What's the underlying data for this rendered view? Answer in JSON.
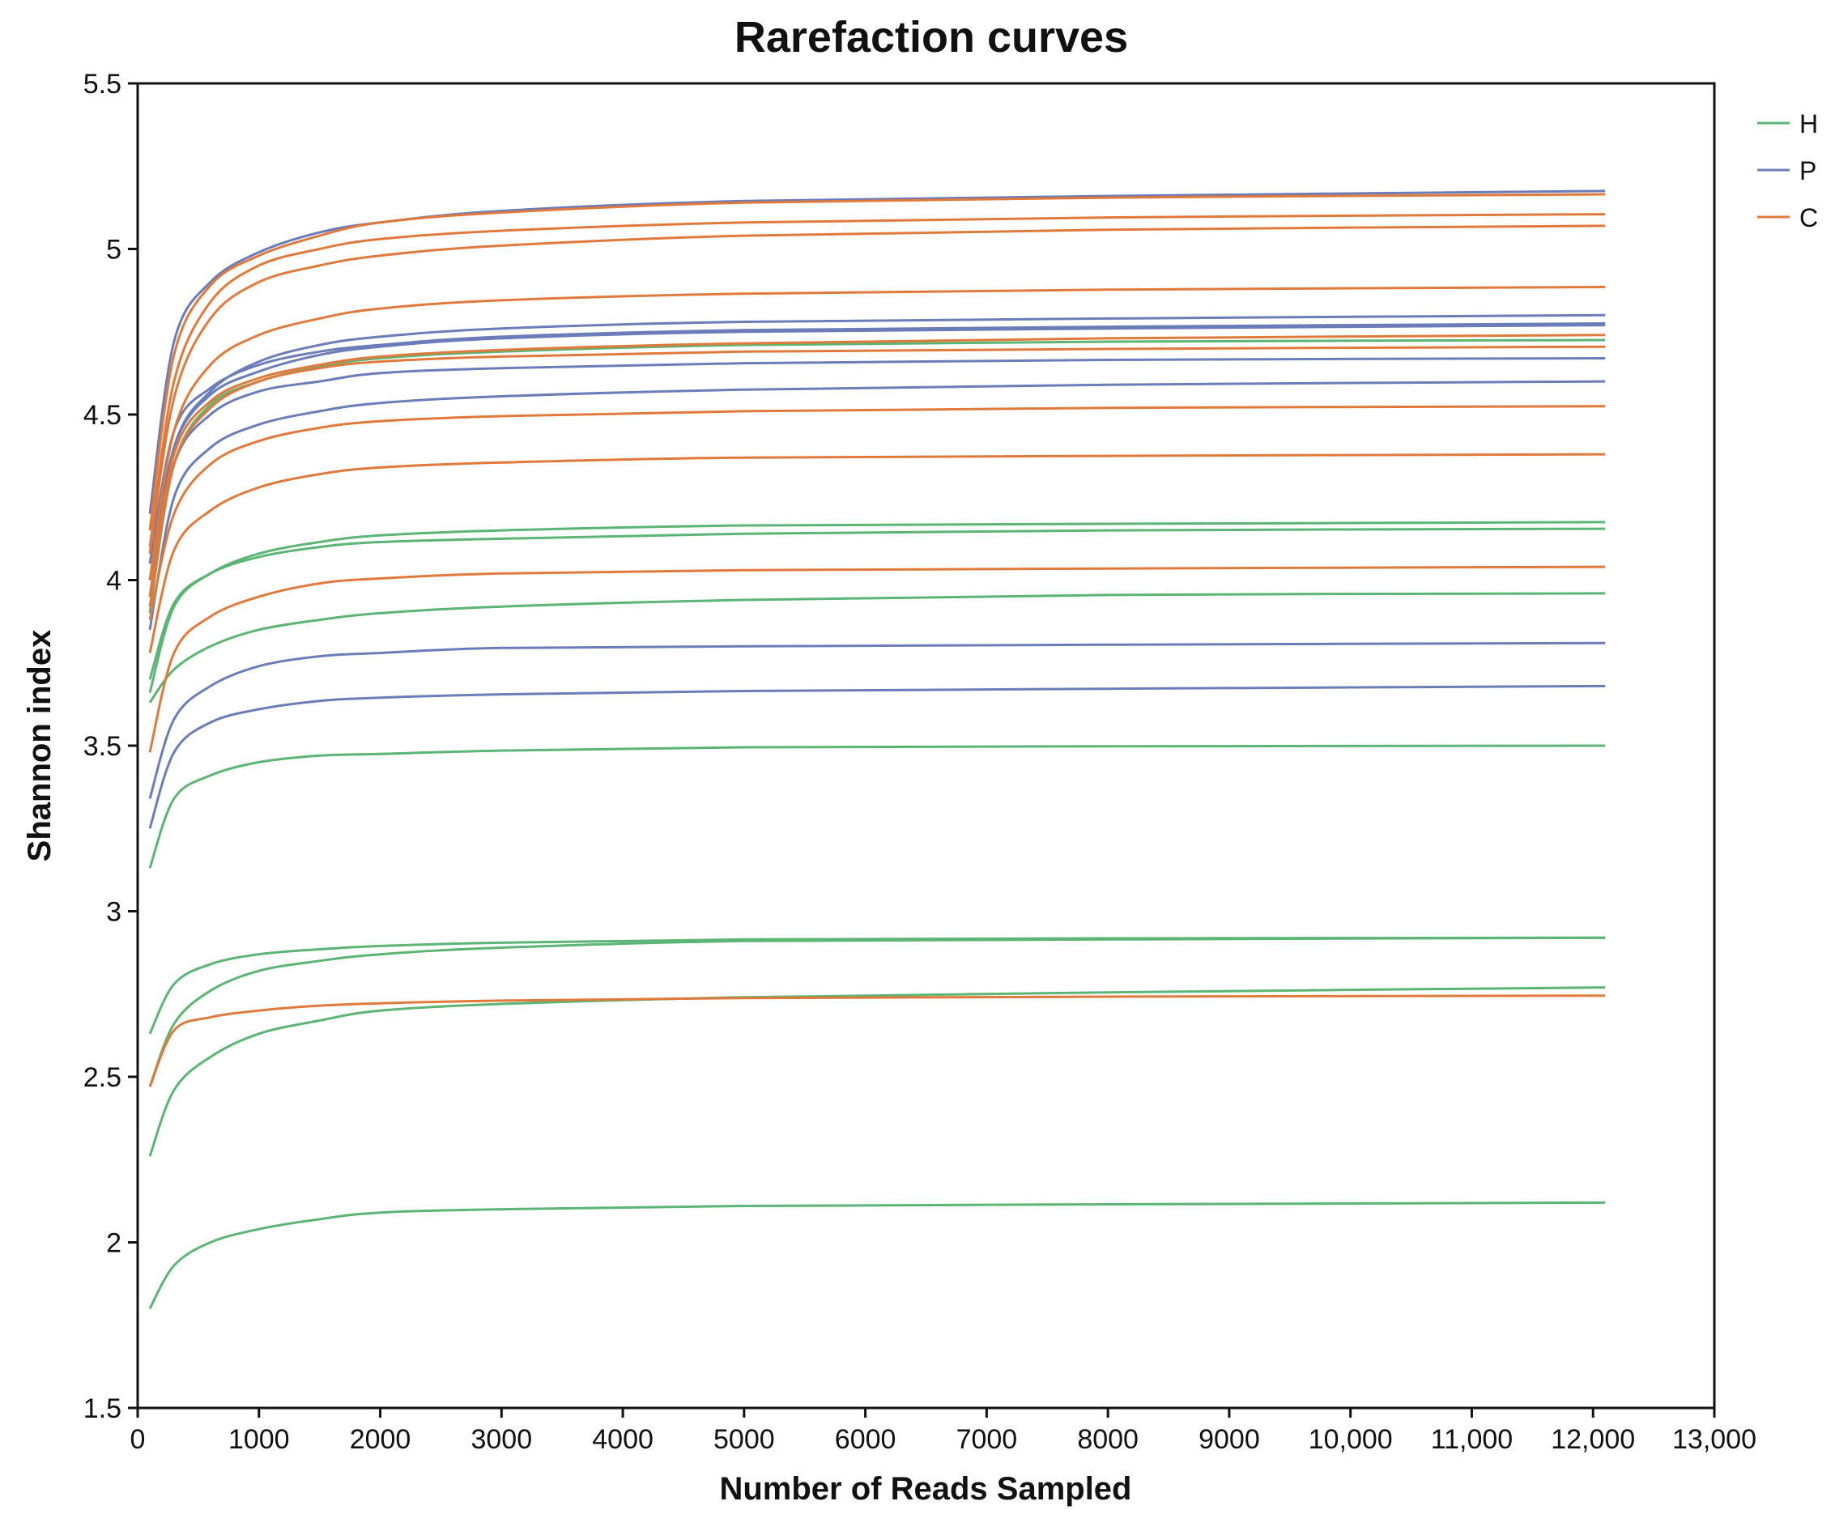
{
  "chart_data": {
    "type": "line",
    "title": "Rarefaction curves",
    "xlabel": "Number of Reads Sampled",
    "ylabel": "Shannon index",
    "xlim": [
      0,
      13000
    ],
    "ylim": [
      1.5,
      5.5
    ],
    "x_ticks": [
      0,
      1000,
      2000,
      3000,
      4000,
      5000,
      6000,
      7000,
      8000,
      9000,
      10000,
      11000,
      12000,
      13000
    ],
    "x_tick_labels": [
      "0",
      "1000",
      "2000",
      "3000",
      "4000",
      "5000",
      "6000",
      "7000",
      "8000",
      "9000",
      "10,000",
      "11,000",
      "12,000",
      "13,000"
    ],
    "y_ticks": [
      1.5,
      2,
      2.5,
      3,
      3.5,
      4,
      4.5,
      5,
      5.5
    ],
    "y_tick_labels": [
      "1.5",
      "2",
      "2.5",
      "3",
      "3.5",
      "4",
      "4.5",
      "5",
      "5.5"
    ],
    "grid": false,
    "legend_position": "top-right",
    "x": [
      100,
      300,
      600,
      1000,
      1500,
      2000,
      3000,
      5000,
      8000,
      12100
    ],
    "groups": [
      {
        "name": "H",
        "color": "#5cb574"
      },
      {
        "name": "P",
        "color": "#6b7db8"
      },
      {
        "name": "C",
        "color": "#e07a3c"
      }
    ],
    "series": [
      {
        "name": "H",
        "values": [
          1.8,
          1.93,
          2.0,
          2.04,
          2.07,
          2.09,
          2.1,
          2.11,
          2.115,
          2.12
        ]
      },
      {
        "name": "H",
        "values": [
          2.26,
          2.46,
          2.56,
          2.63,
          2.67,
          2.7,
          2.72,
          2.74,
          2.755,
          2.77
        ]
      },
      {
        "name": "H",
        "values": [
          2.47,
          2.66,
          2.76,
          2.82,
          2.85,
          2.87,
          2.89,
          2.91,
          2.915,
          2.92
        ]
      },
      {
        "name": "H",
        "values": [
          2.63,
          2.78,
          2.84,
          2.87,
          2.885,
          2.895,
          2.905,
          2.915,
          2.918,
          2.92
        ]
      },
      {
        "name": "H",
        "values": [
          3.13,
          3.34,
          3.41,
          3.45,
          3.47,
          3.475,
          3.485,
          3.495,
          3.498,
          3.5
        ]
      },
      {
        "name": "H",
        "values": [
          3.63,
          3.73,
          3.8,
          3.85,
          3.88,
          3.9,
          3.92,
          3.94,
          3.955,
          3.96
        ]
      },
      {
        "name": "H",
        "values": [
          3.7,
          3.93,
          4.02,
          4.07,
          4.1,
          4.115,
          4.125,
          4.14,
          4.15,
          4.155
        ]
      },
      {
        "name": "H",
        "values": [
          3.66,
          3.92,
          4.02,
          4.08,
          4.115,
          4.135,
          4.15,
          4.165,
          4.17,
          4.175
        ]
      },
      {
        "name": "H",
        "values": [
          3.9,
          4.35,
          4.53,
          4.6,
          4.645,
          4.67,
          4.69,
          4.71,
          4.72,
          4.725
        ]
      },
      {
        "name": "P",
        "values": [
          3.25,
          3.48,
          3.57,
          3.61,
          3.635,
          3.645,
          3.655,
          3.665,
          3.672,
          3.68
        ]
      },
      {
        "name": "P",
        "values": [
          3.34,
          3.58,
          3.68,
          3.74,
          3.77,
          3.78,
          3.795,
          3.8,
          3.805,
          3.81
        ]
      },
      {
        "name": "P",
        "values": [
          3.85,
          4.25,
          4.4,
          4.47,
          4.51,
          4.535,
          4.555,
          4.575,
          4.59,
          4.6
        ]
      },
      {
        "name": "P",
        "values": [
          3.95,
          4.35,
          4.5,
          4.57,
          4.6,
          4.625,
          4.64,
          4.655,
          4.665,
          4.67
        ]
      },
      {
        "name": "P",
        "values": [
          4.0,
          4.4,
          4.56,
          4.63,
          4.68,
          4.705,
          4.73,
          4.75,
          4.76,
          4.77
        ]
      },
      {
        "name": "P",
        "values": [
          4.05,
          4.45,
          4.58,
          4.65,
          4.69,
          4.71,
          4.735,
          4.755,
          4.765,
          4.775
        ]
      },
      {
        "name": "P",
        "values": [
          3.95,
          4.4,
          4.57,
          4.66,
          4.71,
          4.735,
          4.76,
          4.78,
          4.79,
          4.8
        ]
      },
      {
        "name": "P",
        "values": [
          4.2,
          4.72,
          4.9,
          4.99,
          5.05,
          5.08,
          5.115,
          5.145,
          5.16,
          5.175
        ]
      },
      {
        "name": "C",
        "values": [
          2.47,
          2.64,
          2.68,
          2.7,
          2.715,
          2.722,
          2.73,
          2.738,
          2.742,
          2.745
        ]
      },
      {
        "name": "C",
        "values": [
          3.48,
          3.78,
          3.89,
          3.95,
          3.99,
          4.005,
          4.02,
          4.03,
          4.035,
          4.04
        ]
      },
      {
        "name": "C",
        "values": [
          3.78,
          4.09,
          4.21,
          4.28,
          4.32,
          4.34,
          4.355,
          4.37,
          4.375,
          4.38
        ]
      },
      {
        "name": "C",
        "values": [
          3.88,
          4.2,
          4.35,
          4.42,
          4.46,
          4.48,
          4.495,
          4.51,
          4.52,
          4.525
        ]
      },
      {
        "name": "C",
        "values": [
          3.92,
          4.35,
          4.52,
          4.6,
          4.64,
          4.66,
          4.675,
          4.69,
          4.698,
          4.705
        ]
      },
      {
        "name": "C",
        "values": [
          3.95,
          4.38,
          4.54,
          4.61,
          4.65,
          4.675,
          4.695,
          4.715,
          4.73,
          4.74
        ]
      },
      {
        "name": "C",
        "values": [
          4.0,
          4.45,
          4.65,
          4.74,
          4.79,
          4.82,
          4.845,
          4.865,
          4.877,
          4.885
        ]
      },
      {
        "name": "C",
        "values": [
          4.08,
          4.55,
          4.79,
          4.9,
          4.95,
          4.98,
          5.01,
          5.04,
          5.058,
          5.07
        ]
      },
      {
        "name": "C",
        "values": [
          4.1,
          4.6,
          4.84,
          4.95,
          5.0,
          5.03,
          5.055,
          5.08,
          5.095,
          5.105
        ]
      },
      {
        "name": "C",
        "values": [
          4.15,
          4.68,
          4.89,
          4.98,
          5.04,
          5.08,
          5.11,
          5.14,
          5.155,
          5.165
        ]
      }
    ]
  }
}
